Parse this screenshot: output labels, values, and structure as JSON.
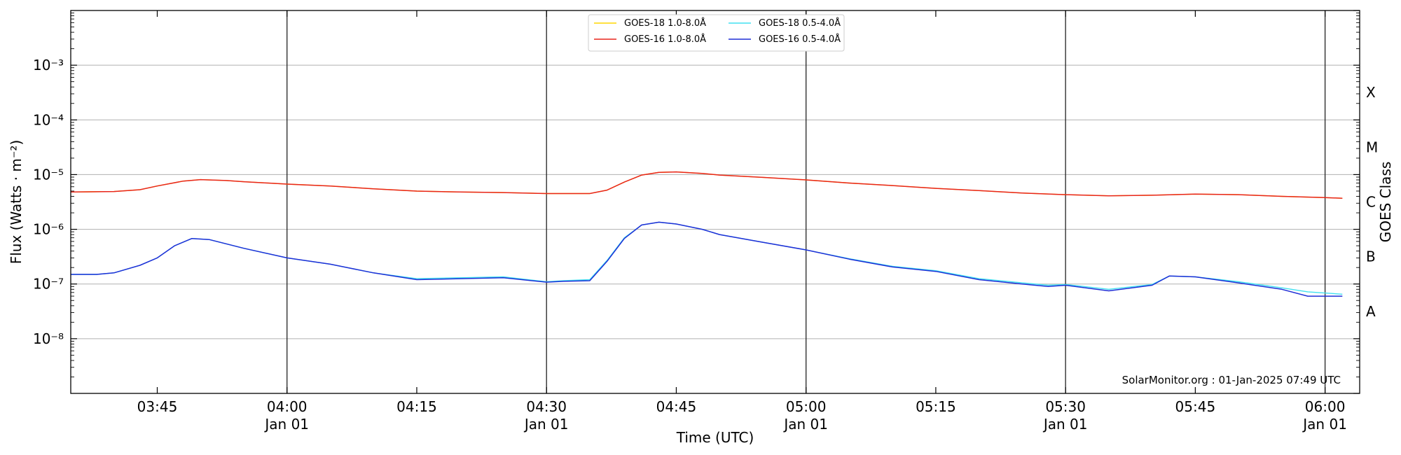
{
  "chart_data": {
    "type": "line",
    "xlabel": "Time (UTC)",
    "ylabel": "Flux (Watts · m⁻²)",
    "ylabel_right": "GOES Class",
    "y_scale": "log",
    "ylim": [
      1e-09,
      0.01
    ],
    "xlim": [
      "03:35",
      "06:04"
    ],
    "grid": "horizontal",
    "legend": "top-center",
    "credit": "SolarMonitor.org : 01-Jan-2025 07:49 UTC",
    "x_ticks": [
      {
        "time": "03:45",
        "label": "03:45",
        "sub": ""
      },
      {
        "time": "04:00",
        "label": "04:00",
        "sub": "Jan 01"
      },
      {
        "time": "04:15",
        "label": "04:15",
        "sub": ""
      },
      {
        "time": "04:30",
        "label": "04:30",
        "sub": "Jan 01"
      },
      {
        "time": "04:45",
        "label": "04:45",
        "sub": ""
      },
      {
        "time": "05:00",
        "label": "05:00",
        "sub": "Jan 01"
      },
      {
        "time": "05:15",
        "label": "05:15",
        "sub": ""
      },
      {
        "time": "05:30",
        "label": "05:30",
        "sub": "Jan 01"
      },
      {
        "time": "05:45",
        "label": "05:45",
        "sub": ""
      },
      {
        "time": "06:00",
        "label": "06:00",
        "sub": "Jan 01"
      }
    ],
    "vlines": [
      "04:00",
      "04:30",
      "05:00",
      "05:30",
      "06:00"
    ],
    "y_ticks": [
      {
        "exp": -3,
        "label": "10⁻³"
      },
      {
        "exp": -4,
        "label": "10⁻⁴"
      },
      {
        "exp": -5,
        "label": "10⁻⁵"
      },
      {
        "exp": -6,
        "label": "10⁻⁶"
      },
      {
        "exp": -7,
        "label": "10⁻⁷"
      },
      {
        "exp": -8,
        "label": "10⁻⁸"
      }
    ],
    "goes_classes": [
      {
        "label": "X",
        "level": -3.5
      },
      {
        "label": "M",
        "level": -4.5
      },
      {
        "label": "C",
        "level": -5.5
      },
      {
        "label": "B",
        "level": -6.5
      },
      {
        "label": "A",
        "level": -7.5
      }
    ],
    "series": [
      {
        "name": "GOES-18 1.0-8.0Å",
        "color": "#ffd700",
        "x": [
          "03:35",
          "03:40",
          "03:43",
          "03:45",
          "03:48",
          "03:50",
          "03:53",
          "03:55",
          "04:00",
          "04:05",
          "04:10",
          "04:15",
          "04:20",
          "04:25",
          "04:30",
          "04:35",
          "04:37",
          "04:39",
          "04:41",
          "04:43",
          "04:45",
          "04:48",
          "04:50",
          "04:55",
          "05:00",
          "05:05",
          "05:10",
          "05:15",
          "05:20",
          "05:25",
          "05:30",
          "05:35",
          "05:40",
          "05:45",
          "05:50",
          "05:55",
          "06:00",
          "06:02"
        ],
        "values": [
          4.8e-06,
          4.9e-06,
          5.3e-06,
          6.2e-06,
          7.6e-06,
          8.1e-06,
          7.8e-06,
          7.4e-06,
          6.7e-06,
          6.2e-06,
          5.5e-06,
          5e-06,
          4.8e-06,
          4.7e-06,
          4.5e-06,
          4.5e-06,
          5.2e-06,
          7.3e-06,
          9.8e-06,
          1.1e-05,
          1.12e-05,
          1.05e-05,
          9.8e-06,
          8.9e-06,
          8e-06,
          7e-06,
          6.3e-06,
          5.6e-06,
          5.1e-06,
          4.6e-06,
          4.3e-06,
          4.1e-06,
          4.2e-06,
          4.4e-06,
          4.3e-06,
          4e-06,
          3.8e-06,
          3.7e-06
        ]
      },
      {
        "name": "GOES-16 1.0-8.0Å",
        "color": "#e8251c",
        "x": [
          "03:35",
          "03:40",
          "03:43",
          "03:45",
          "03:48",
          "03:50",
          "03:53",
          "03:55",
          "04:00",
          "04:05",
          "04:10",
          "04:15",
          "04:20",
          "04:25",
          "04:30",
          "04:35",
          "04:37",
          "04:39",
          "04:41",
          "04:43",
          "04:45",
          "04:48",
          "04:50",
          "04:55",
          "05:00",
          "05:05",
          "05:10",
          "05:15",
          "05:20",
          "05:25",
          "05:30",
          "05:35",
          "05:40",
          "05:45",
          "05:50",
          "05:55",
          "06:00",
          "06:02"
        ],
        "values": [
          4.8e-06,
          4.9e-06,
          5.3e-06,
          6.2e-06,
          7.6e-06,
          8.1e-06,
          7.8e-06,
          7.4e-06,
          6.7e-06,
          6.2e-06,
          5.5e-06,
          5e-06,
          4.8e-06,
          4.7e-06,
          4.5e-06,
          4.5e-06,
          5.2e-06,
          7.3e-06,
          9.8e-06,
          1.1e-05,
          1.12e-05,
          1.05e-05,
          9.8e-06,
          8.9e-06,
          8e-06,
          7e-06,
          6.3e-06,
          5.6e-06,
          5.1e-06,
          4.6e-06,
          4.3e-06,
          4.1e-06,
          4.2e-06,
          4.4e-06,
          4.3e-06,
          4e-06,
          3.8e-06,
          3.7e-06
        ]
      },
      {
        "name": "GOES-18 0.5-4.0Å",
        "color": "#40e0f0",
        "x": [
          "03:35",
          "03:38",
          "03:40",
          "03:43",
          "03:45",
          "03:47",
          "03:49",
          "03:51",
          "03:55",
          "04:00",
          "04:05",
          "04:10",
          "04:15",
          "04:20",
          "04:25",
          "04:30",
          "04:32",
          "04:35",
          "04:37",
          "04:39",
          "04:41",
          "04:43",
          "04:45",
          "04:48",
          "04:50",
          "04:55",
          "05:00",
          "05:05",
          "05:10",
          "05:15",
          "05:20",
          "05:25",
          "05:28",
          "05:30",
          "05:35",
          "05:40",
          "05:42",
          "05:45",
          "05:50",
          "05:55",
          "05:58",
          "06:02"
        ],
        "values": [
          1.5e-07,
          1.5e-07,
          1.6e-07,
          2.2e-07,
          3e-07,
          5e-07,
          6.8e-07,
          6.5e-07,
          4.5e-07,
          3e-07,
          2.3e-07,
          1.6e-07,
          1.25e-07,
          1.3e-07,
          1.35e-07,
          1.1e-07,
          1.15e-07,
          1.2e-07,
          2.7e-07,
          7e-07,
          1.2e-06,
          1.35e-06,
          1.25e-06,
          1e-06,
          8e-07,
          5.8e-07,
          4.2e-07,
          2.9e-07,
          2.1e-07,
          1.75e-07,
          1.25e-07,
          1.05e-07,
          9.5e-08,
          9.8e-08,
          8e-08,
          9.8e-08,
          1.4e-07,
          1.35e-07,
          1.1e-07,
          8.5e-08,
          7.2e-08,
          6.5e-08
        ]
      },
      {
        "name": "GOES-16 0.5-4.0Å",
        "color": "#1f2fd6",
        "x": [
          "03:35",
          "03:38",
          "03:40",
          "03:43",
          "03:45",
          "03:47",
          "03:49",
          "03:51",
          "03:55",
          "04:00",
          "04:05",
          "04:10",
          "04:15",
          "04:20",
          "04:25",
          "04:30",
          "04:32",
          "04:35",
          "04:37",
          "04:39",
          "04:41",
          "04:43",
          "04:45",
          "04:48",
          "04:50",
          "04:55",
          "05:00",
          "05:05",
          "05:10",
          "05:15",
          "05:20",
          "05:25",
          "05:28",
          "05:30",
          "05:35",
          "05:40",
          "05:42",
          "05:45",
          "05:50",
          "05:55",
          "05:58",
          "06:02"
        ],
        "values": [
          1.5e-07,
          1.5e-07,
          1.6e-07,
          2.2e-07,
          3e-07,
          5e-07,
          6.8e-07,
          6.5e-07,
          4.5e-07,
          3e-07,
          2.3e-07,
          1.6e-07,
          1.2e-07,
          1.25e-07,
          1.3e-07,
          1.08e-07,
          1.12e-07,
          1.15e-07,
          2.6e-07,
          6.8e-07,
          1.2e-06,
          1.35e-06,
          1.25e-06,
          1e-06,
          8e-07,
          5.8e-07,
          4.2e-07,
          2.85e-07,
          2.05e-07,
          1.7e-07,
          1.2e-07,
          1e-07,
          9e-08,
          9.5e-08,
          7.5e-08,
          9.5e-08,
          1.4e-07,
          1.35e-07,
          1.05e-07,
          8e-08,
          6e-08,
          6e-08
        ]
      }
    ]
  }
}
